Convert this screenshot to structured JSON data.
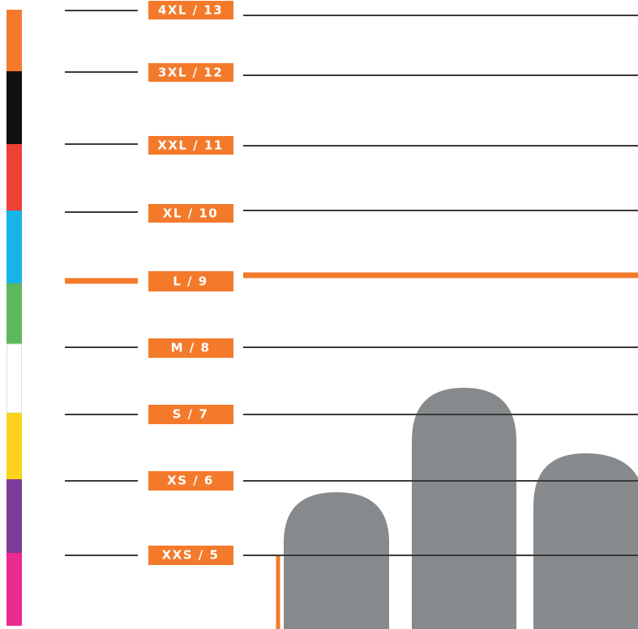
{
  "sizes": [
    "4XL / 13",
    "3XL / 12",
    "XXL / 11",
    "XL / 10",
    "L / 9",
    "M / 8",
    "S / 7",
    "XS / 6",
    "XXS / 5"
  ]
}
